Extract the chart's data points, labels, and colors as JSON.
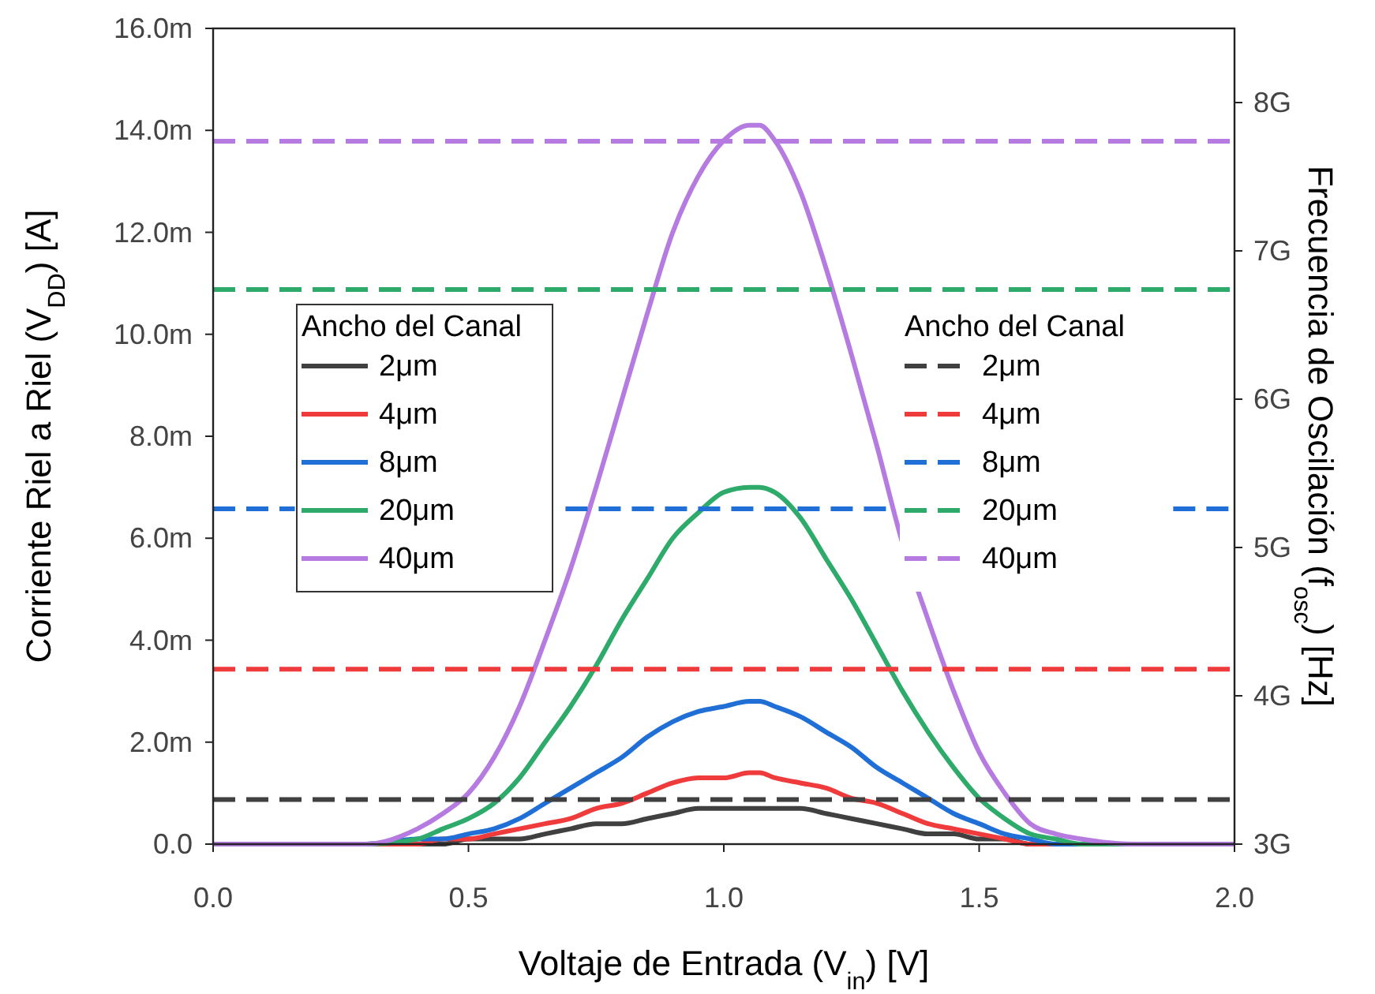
{
  "chart_data": {
    "type": "line",
    "xlabel": "Voltaje de Entrada (V$_{in}$) [V]",
    "ylabel": "Corriente Riel a Riel (V$_{DD}$) [A]",
    "y2label": "Frecuencia de Oscilación (f$_{osc}$) [Hz]",
    "legend_title": "Ancho del Canal",
    "legend": "center",
    "grid": false,
    "line_style": "solid",
    "marker": "none",
    "xlim": [
      0,
      2
    ],
    "xticks": [
      {
        "value": 0,
        "label": "0.0"
      },
      {
        "value": 0.5,
        "label": "0.5"
      },
      {
        "value": 1,
        "label": "1.0"
      },
      {
        "value": 1.5,
        "label": "1.5"
      },
      {
        "value": 2,
        "label": "2.0"
      }
    ],
    "ylim": [
      0,
      16
    ],
    "yticks": [
      {
        "value": 0,
        "label": "0.0"
      },
      {
        "value": 2,
        "label": "2.0m"
      },
      {
        "value": 4,
        "label": "4.0m"
      },
      {
        "value": 6,
        "label": "6.0m"
      },
      {
        "value": 8,
        "label": "8.0m"
      },
      {
        "value": 10,
        "label": "10.0m"
      },
      {
        "value": 12,
        "label": "12.0m"
      },
      {
        "value": 14,
        "label": "14.0m"
      },
      {
        "value": 16,
        "label": "16.0m"
      }
    ],
    "y2lim": [
      3,
      8.5
    ],
    "y2ticks": [
      {
        "value": 3,
        "label": "3G"
      },
      {
        "value": 4,
        "label": "4G"
      },
      {
        "value": 5,
        "label": "5G"
      },
      {
        "value": 6,
        "label": "6G"
      },
      {
        "value": 7,
        "label": "7G"
      },
      {
        "value": 8,
        "label": "8G"
      }
    ],
    "x": [
      0,
      0.2,
      0.3,
      0.4,
      0.45,
      0.5,
      0.55,
      0.6,
      0.65,
      0.7,
      0.75,
      0.8,
      0.85,
      0.9,
      0.95,
      1.0,
      1.05,
      1.07,
      1.1,
      1.15,
      1.2,
      1.25,
      1.3,
      1.35,
      1.4,
      1.45,
      1.5,
      1.55,
      1.6,
      1.65,
      1.7,
      1.8,
      2.0
    ],
    "series": [
      {
        "name": "2μm",
        "color": "#404040",
        "values": [
          0,
          0,
          0,
          0,
          0,
          0.1,
          0.1,
          0.1,
          0.2,
          0.3,
          0.4,
          0.4,
          0.5,
          0.6,
          0.7,
          0.7,
          0.7,
          0.7,
          0.7,
          0.7,
          0.6,
          0.5,
          0.4,
          0.3,
          0.2,
          0.2,
          0.1,
          0.1,
          0,
          0,
          0,
          0,
          0
        ]
      },
      {
        "name": "4μm",
        "color": "#ef3b3b",
        "values": [
          0,
          0,
          0,
          0,
          0.1,
          0.1,
          0.2,
          0.3,
          0.4,
          0.5,
          0.7,
          0.8,
          1,
          1.2,
          1.3,
          1.3,
          1.4,
          1.4,
          1.3,
          1.2,
          1.1,
          0.9,
          0.8,
          0.6,
          0.4,
          0.3,
          0.2,
          0.1,
          0,
          0,
          0,
          null,
          null
        ]
      },
      {
        "name": "8μm",
        "color": "#1f6fd6",
        "values": [
          0,
          0,
          0,
          0.1,
          0.1,
          0.2,
          0.3,
          0.5,
          0.8,
          1.1,
          1.4,
          1.7,
          2.1,
          2.4,
          2.6,
          2.7,
          2.8,
          2.8,
          2.7,
          2.5,
          2.2,
          1.9,
          1.5,
          1.2,
          0.9,
          0.6,
          0.4,
          0.2,
          0.1,
          0,
          0,
          0,
          0
        ]
      },
      {
        "name": "20μm",
        "color": "#2eaa6a",
        "values": [
          0,
          0,
          0,
          0.1,
          0.3,
          0.5,
          0.8,
          1.3,
          2,
          2.7,
          3.5,
          4.4,
          5.2,
          6,
          6.5,
          6.9,
          7,
          7,
          6.9,
          6.4,
          5.6,
          4.8,
          3.9,
          3,
          2.2,
          1.5,
          0.9,
          0.5,
          0.2,
          0.1,
          0,
          0,
          0
        ]
      },
      {
        "name": "40μm",
        "color": "#b57be0",
        "values": [
          0,
          0,
          0,
          0.3,
          0.6,
          1,
          1.7,
          2.7,
          4,
          5.4,
          7,
          8.7,
          10.4,
          12,
          13.1,
          13.8,
          14.1,
          14.1,
          13.8,
          12.8,
          11.3,
          9.6,
          7.8,
          5.9,
          4.4,
          3,
          1.8,
          1,
          0.4,
          0.2,
          0.1,
          0,
          0
        ]
      },
      {
        "name": "2μm",
        "color": "#404040",
        "axis": "y2",
        "line_style": "dashed",
        "values": [
          3.3,
          3.3,
          3.3,
          3.3,
          3.3,
          3.3,
          3.3,
          3.3,
          3.3,
          3.3,
          3.3,
          3.3,
          3.3,
          3.3,
          3.3,
          3.3,
          3.3,
          3.3,
          3.3,
          3.3,
          3.3,
          3.3,
          3.3,
          3.3,
          3.3,
          3.3,
          3.3,
          3.3,
          3.3,
          3.3,
          3.3,
          3.3,
          3.3
        ]
      },
      {
        "name": "4μm",
        "color": "#ef3b3b",
        "axis": "y2",
        "line_style": "dashed",
        "values": [
          4.18,
          4.18,
          4.18,
          4.18,
          4.18,
          4.18,
          4.18,
          4.18,
          4.18,
          4.18,
          4.18,
          4.18,
          4.18,
          4.18,
          4.18,
          4.18,
          4.18,
          4.18,
          4.18,
          4.18,
          4.18,
          4.18,
          4.18,
          4.18,
          4.18,
          4.18,
          4.18,
          4.18,
          4.18,
          4.18,
          4.18,
          4.18,
          4.18
        ]
      },
      {
        "name": "8μm",
        "color": "#1f6fd6",
        "axis": "y2",
        "line_style": "dashed",
        "x": [
          0,
          0.16,
          0.17,
          0.69,
          1.33,
          1.34,
          1.88,
          2
        ],
        "values": [
          5.26,
          5.26,
          null,
          5.26,
          5.26,
          null,
          5.26,
          5.26
        ]
      },
      {
        "name": "20μm",
        "color": "#2eaa6a",
        "axis": "y2",
        "line_style": "dashed",
        "values": [
          6.74,
          6.74,
          6.74,
          6.74,
          6.74,
          6.74,
          6.74,
          6.74,
          6.74,
          6.74,
          6.74,
          6.74,
          6.74,
          6.74,
          6.74,
          6.74,
          6.74,
          6.74,
          6.74,
          6.74,
          6.74,
          6.74,
          6.74,
          6.74,
          6.74,
          6.74,
          6.74,
          6.74,
          6.74,
          6.74,
          6.74,
          6.74,
          6.74
        ]
      },
      {
        "name": "40μm",
        "color": "#b57be0",
        "axis": "y2",
        "line_style": "dashed",
        "values": [
          7.74,
          7.74,
          7.74,
          7.74,
          7.74,
          7.74,
          7.74,
          7.74,
          7.74,
          7.74,
          7.74,
          7.74,
          7.74,
          7.74,
          7.74,
          7.74,
          7.74,
          7.74,
          7.74,
          7.74,
          7.74,
          7.74,
          7.74,
          7.74,
          7.74,
          7.74,
          7.74,
          7.74,
          7.74,
          7.74,
          7.74,
          7.74,
          7.74
        ]
      }
    ]
  }
}
